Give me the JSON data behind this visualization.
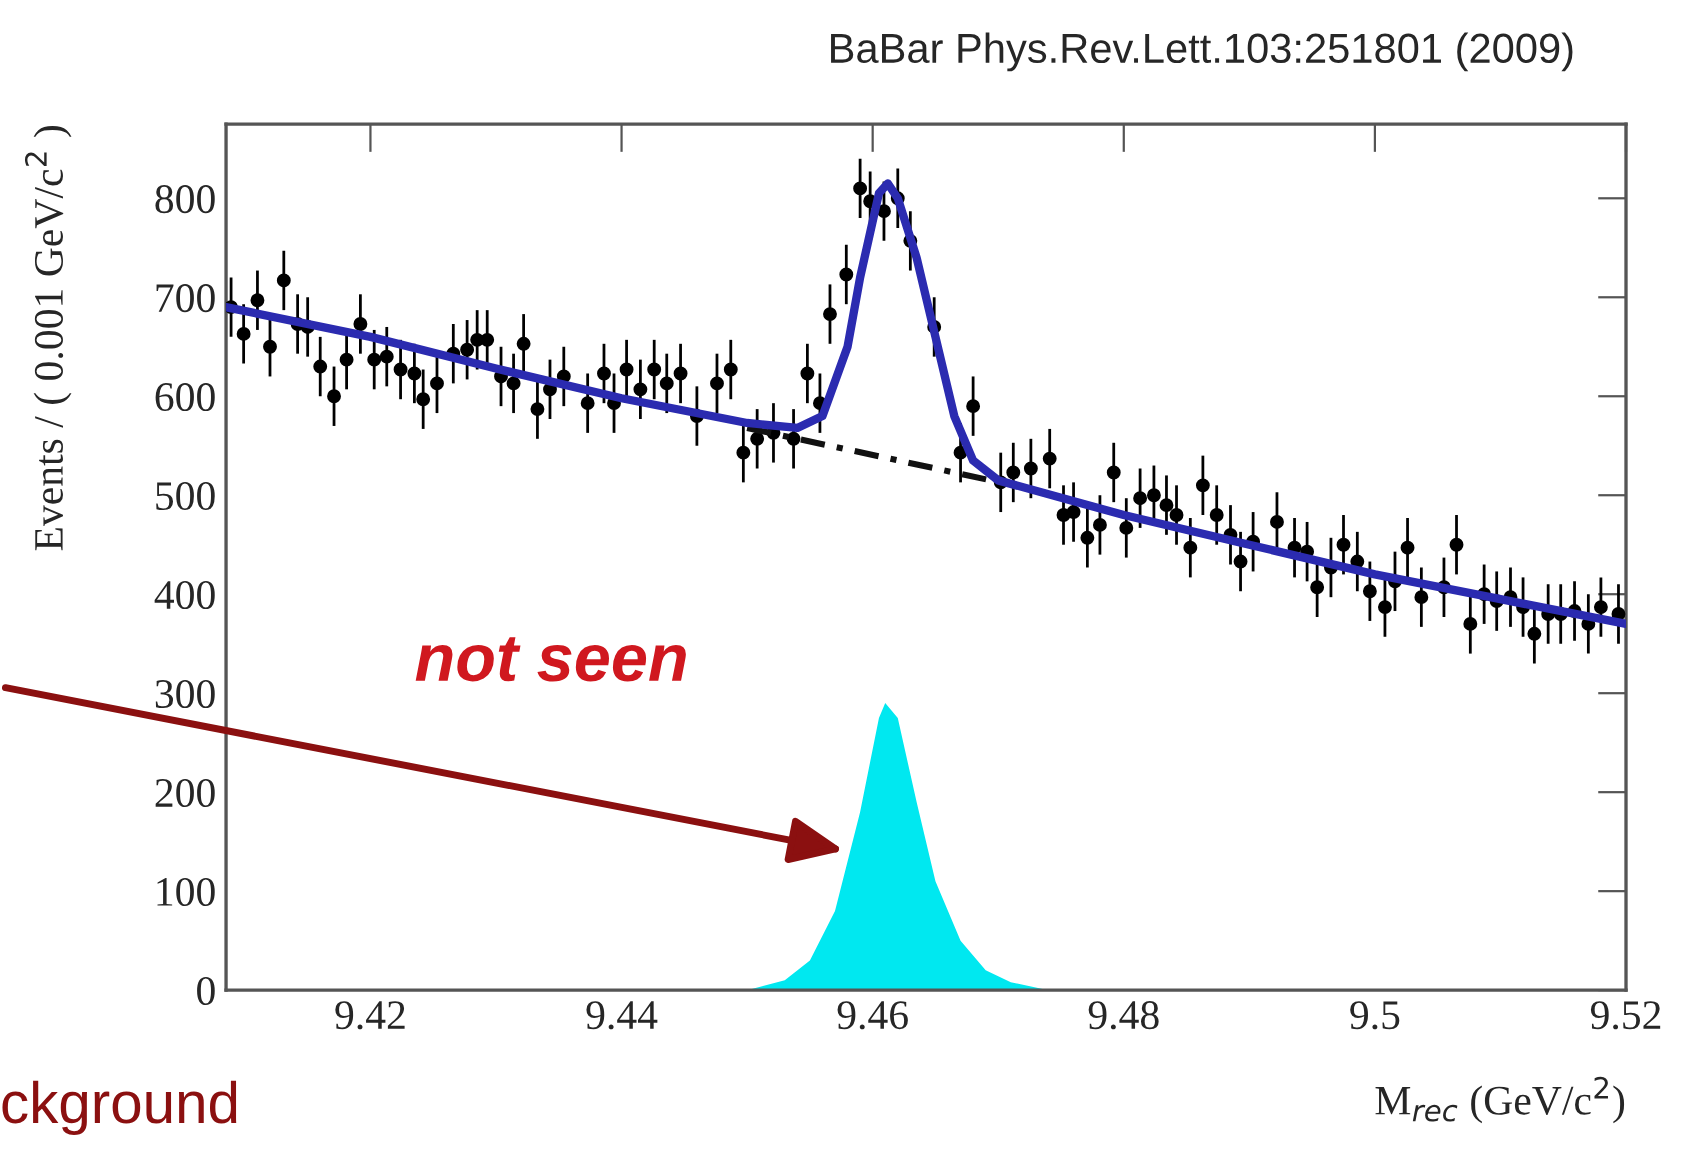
{
  "chart_data": {
    "type": "scatter",
    "title": "BaBar Phys.Rev.Lett.103:251801 (2009)",
    "xlabel": "M$_{rec}$ (GeV/c$^{2}$)",
    "ylabel": "Events / ( 0.001 GeV/c$^{2}$ )",
    "xlim": [
      9.4085,
      9.52
    ],
    "xticks": [
      9.42,
      9.44,
      9.46,
      9.48,
      9.5,
      9.52
    ],
    "ylim": [
      0,
      875
    ],
    "yticks": [
      0,
      100,
      200,
      300,
      400,
      500,
      600,
      700,
      800
    ],
    "grid": false,
    "legend": false,
    "annotations": [
      "not seen",
      "ckground"
    ],
    "series": [
      {
        "type": "area",
        "color": "#00e8f0",
        "x": [
          9.45,
          9.453,
          9.455,
          9.457,
          9.459,
          9.4605,
          9.461,
          9.462,
          9.4635,
          9.465,
          9.467,
          9.469,
          9.471,
          9.474
        ],
        "values": [
          0,
          10,
          30,
          80,
          180,
          275,
          290,
          275,
          190,
          110,
          50,
          20,
          8,
          0
        ]
      },
      {
        "type": "line",
        "color": "#111111",
        "line_style": "dashed",
        "x": [
          9.45,
          9.4705
        ],
        "values": [
          568,
          512
        ]
      },
      {
        "type": "line",
        "color": "#2b2bb0",
        "line_style": "solid",
        "x": [
          9.4085,
          9.42,
          9.43,
          9.44,
          9.45,
          9.454,
          9.456,
          9.458,
          9.459,
          9.4605,
          9.4612,
          9.462,
          9.4635,
          9.465,
          9.4665,
          9.468,
          9.47,
          9.48,
          9.49,
          9.5,
          9.51,
          9.52
        ],
        "values": [
          690,
          660,
          628,
          598,
          573,
          568,
          580,
          650,
          720,
          805,
          815,
          800,
          740,
          660,
          580,
          535,
          515,
          480,
          450,
          420,
          395,
          370
        ]
      },
      {
        "color": "#000000",
        "marker": "circle",
        "x": [
          9.4089,
          9.4099,
          9.411,
          9.412,
          9.4131,
          9.4142,
          9.415,
          9.416,
          9.4171,
          9.4181,
          9.4192,
          9.4203,
          9.4213,
          9.4224,
          9.4235,
          9.4242,
          9.4253,
          9.4266,
          9.4277,
          9.4285,
          9.4293,
          9.4304,
          9.4314,
          9.4322,
          9.4333,
          9.4343,
          9.4354,
          9.4373,
          9.4386,
          9.4394,
          9.4404,
          9.4415,
          9.4426,
          9.4436,
          9.4447,
          9.446,
          9.4476,
          9.4487,
          9.4497,
          9.4508,
          9.4521,
          9.4537,
          9.4548,
          9.4558,
          9.4566,
          9.4579,
          9.459,
          9.4598,
          9.4609,
          9.462,
          9.463,
          9.4649,
          9.467,
          9.468,
          9.4702,
          9.4712,
          9.4726,
          9.4741,
          9.4752,
          9.476,
          9.4771,
          9.4781,
          9.4792,
          9.4802,
          9.4813,
          9.4824,
          9.4834,
          9.4842,
          9.4853,
          9.4863,
          9.4874,
          9.4885,
          9.4893,
          9.4903,
          9.4922,
          9.4936,
          9.4946,
          9.4954,
          9.4965,
          9.4975,
          9.4986,
          9.4996,
          9.5008,
          9.5016,
          9.5026,
          9.5037,
          9.5055,
          9.5065,
          9.5076,
          9.5087,
          9.5097,
          9.5108,
          9.5118,
          9.5127,
          9.5138,
          9.5148,
          9.5159,
          9.517,
          9.518,
          9.5194
        ],
        "values": [
          690,
          663,
          697,
          650,
          717,
          673,
          670,
          630,
          600,
          637,
          673,
          637,
          640,
          627,
          623,
          597,
          613,
          643,
          647,
          657,
          657,
          620,
          613,
          653,
          587,
          607,
          620,
          593,
          623,
          593,
          627,
          607,
          627,
          613,
          623,
          580,
          613,
          627,
          543,
          557,
          563,
          557,
          623,
          593,
          683,
          723,
          810,
          797,
          787,
          800,
          757,
          670,
          543,
          590,
          513,
          523,
          527,
          537,
          480,
          483,
          457,
          470,
          523,
          467,
          497,
          500,
          490,
          480,
          447,
          510,
          480,
          460,
          433,
          453,
          473,
          447,
          443,
          407,
          427,
          450,
          433,
          403,
          387,
          413,
          447,
          397,
          407,
          450,
          370,
          400,
          393,
          397,
          387,
          360,
          380,
          380,
          383,
          370,
          387,
          380
        ],
        "errors": [
          30,
          30,
          30,
          30,
          30,
          30,
          30,
          30,
          30,
          30,
          30,
          30,
          30,
          30,
          30,
          30,
          30,
          30,
          30,
          30,
          30,
          30,
          30,
          30,
          30,
          30,
          30,
          30,
          30,
          30,
          30,
          30,
          30,
          30,
          30,
          30,
          30,
          30,
          30,
          30,
          30,
          30,
          30,
          30,
          30,
          30,
          30,
          30,
          30,
          30,
          30,
          30,
          30,
          30,
          30,
          30,
          30,
          30,
          30,
          30,
          30,
          30,
          30,
          30,
          30,
          30,
          30,
          30,
          30,
          30,
          30,
          30,
          30,
          30,
          30,
          30,
          30,
          30,
          30,
          30,
          30,
          30,
          30,
          30,
          30,
          30,
          30,
          30,
          30,
          30,
          30,
          30,
          30,
          30,
          30,
          30,
          30,
          30,
          30,
          30
        ]
      }
    ]
  }
}
